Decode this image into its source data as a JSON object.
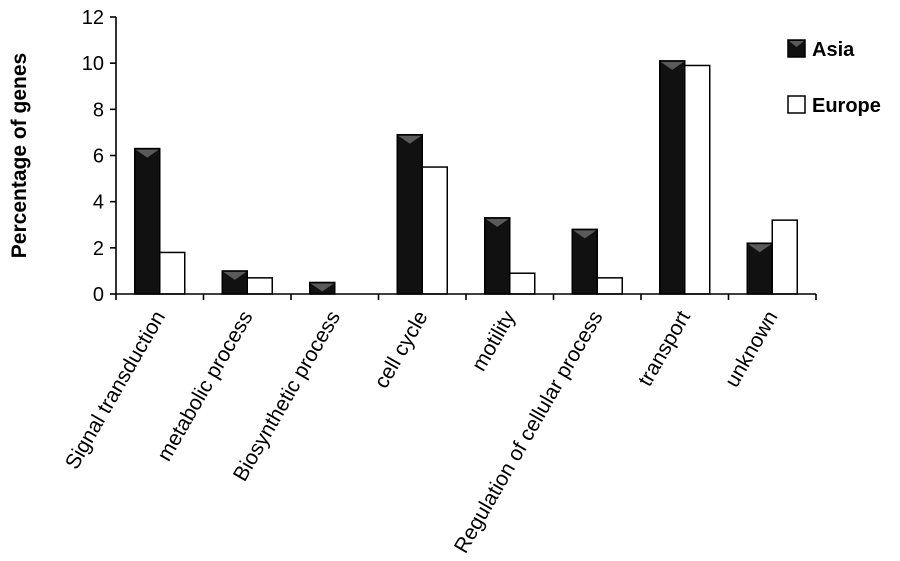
{
  "chart_data": {
    "type": "bar",
    "categories": [
      "Signal transduction",
      "metabolic process",
      "Biosynthetic process",
      "cell cycle",
      "motility",
      "Regulation of cellular process",
      "transport",
      "unknown"
    ],
    "series": [
      {
        "name": "Asia",
        "values": [
          6.3,
          1.0,
          0.5,
          6.9,
          3.3,
          2.8,
          10.1,
          2.2
        ],
        "color": "#111111"
      },
      {
        "name": "Europe",
        "values": [
          1.8,
          0.7,
          0,
          5.5,
          0.9,
          0.7,
          9.9,
          3.2
        ],
        "color": "#ffffff"
      }
    ],
    "xlabel": "",
    "ylabel": "Percentage of genes",
    "ylim": [
      0,
      12
    ],
    "yticks": [
      0,
      2,
      4,
      6,
      8,
      10,
      12
    ],
    "grid": false,
    "legend_position": "top-right"
  }
}
